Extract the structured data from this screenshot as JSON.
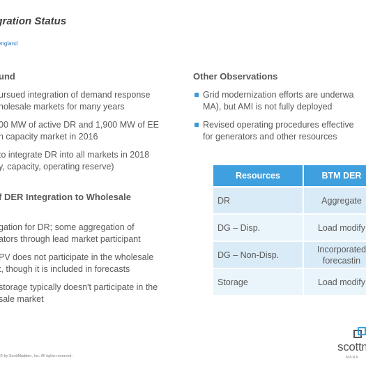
{
  "header": {
    "title": "egration Status",
    "subtitle": "england"
  },
  "left": {
    "section1_heading": "und",
    "section1_paras": [
      [
        "ursued integration of demand response",
        "holesale markets for many years"
      ],
      [
        "00 MW of active DR and 1,900 MW of EE",
        "h capacity market in 2016"
      ],
      [
        "to integrate DR into all markets in 2018",
        "y, capacity, operating reserve)"
      ]
    ],
    "section2_heading": "f DER Integration to Wholesale",
    "section2_paras": [
      [
        "gation for DR; some aggregation of",
        "ators through lead market participant"
      ],
      [
        "PV does not participate in the wholesale",
        "t, though it is included in forecasts"
      ],
      [
        "storage typically doesn't participate in the",
        "sale market"
      ]
    ]
  },
  "right": {
    "heading": "Other Observations",
    "bullets": [
      [
        "Grid modernization efforts are underwa",
        "MA), but AMI is not fully deployed"
      ],
      [
        "Revised operating procedures effective",
        "for generators and other resources"
      ]
    ]
  },
  "table": {
    "headers": [
      "Resources",
      "BTM DER"
    ],
    "rows": [
      {
        "resource": "DR",
        "value": [
          "Aggregate"
        ]
      },
      {
        "resource": "DG – Disp.",
        "value": [
          "Load modify"
        ]
      },
      {
        "resource": "DG – Non-Disp.",
        "value": [
          "Incorporated",
          "forecastin"
        ]
      },
      {
        "resource": "Storage",
        "value": [
          "Load modify"
        ]
      }
    ]
  },
  "footer": {
    "copyright": "© by ScottMadden, Inc. All rights reserved.",
    "logo": "scottm",
    "logo_sub": "MANA"
  },
  "colors": {
    "accent": "#3ea0de",
    "row_odd": "#d9ebf7",
    "row_even": "#eaf4fb",
    "subtitle": "#2e7ab8"
  }
}
